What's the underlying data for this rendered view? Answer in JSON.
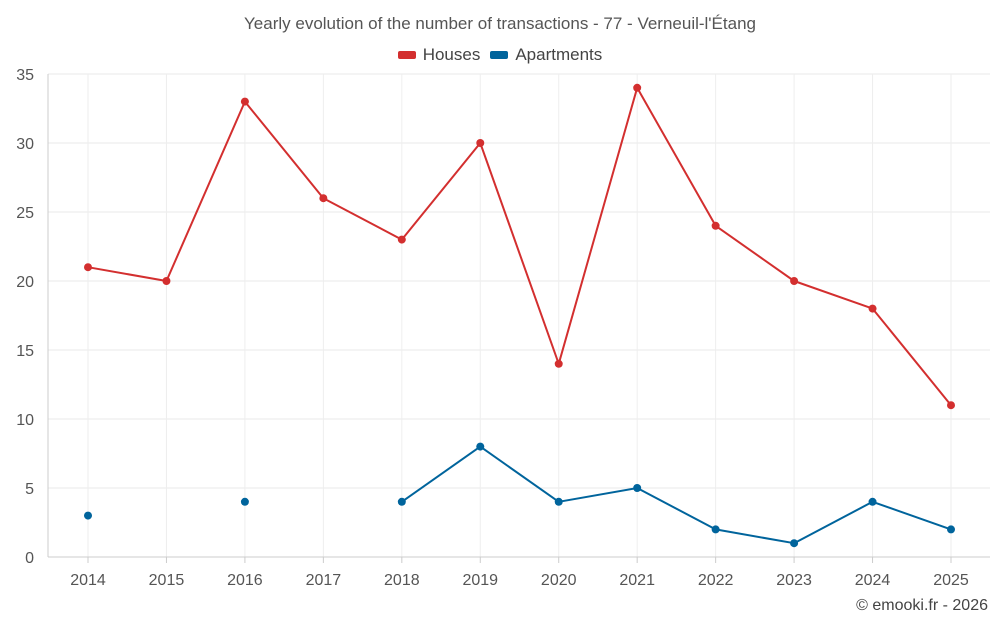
{
  "chart_data": {
    "type": "line",
    "title": "Yearly evolution of the number of transactions - 77 - Verneuil-l'Étang",
    "xlabel": "",
    "ylabel": "",
    "x": [
      "2014",
      "2015",
      "2016",
      "2017",
      "2018",
      "2019",
      "2020",
      "2021",
      "2022",
      "2023",
      "2024",
      "2025"
    ],
    "ylim": [
      0,
      35
    ],
    "yticks": [
      0,
      5,
      10,
      15,
      20,
      25,
      30,
      35
    ],
    "grid": true,
    "legend_position": "top-center",
    "series": [
      {
        "name": "Houses",
        "color": "#d32f2f",
        "values": [
          21,
          20,
          33,
          26,
          23,
          30,
          14,
          34,
          24,
          20,
          18,
          11
        ]
      },
      {
        "name": "Apartments",
        "color": "#00649c",
        "values": [
          3,
          null,
          4,
          null,
          4,
          8,
          4,
          5,
          2,
          1,
          4,
          2
        ]
      }
    ]
  },
  "credit": "© emooki.fr - 2026"
}
